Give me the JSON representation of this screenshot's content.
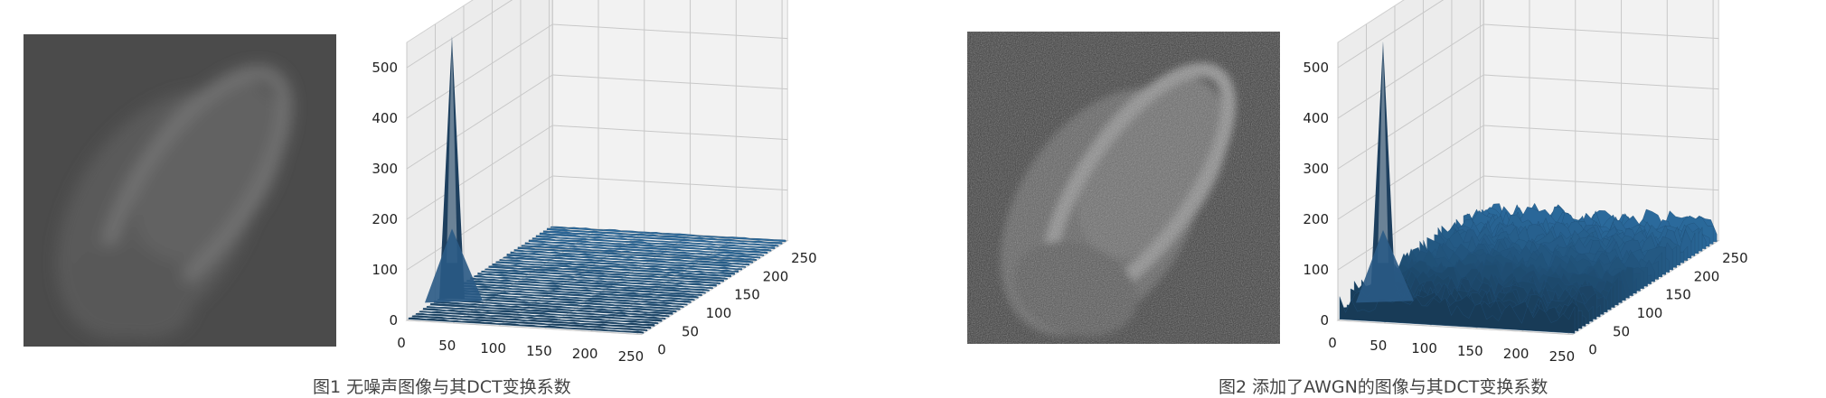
{
  "figures": [
    {
      "caption": "图1 无噪声图像与其DCT变换系数",
      "image_kind": "noise-free",
      "chart_data": {
        "type": "surface3d",
        "title": "",
        "xlabel": "",
        "ylabel": "",
        "zlabel": "",
        "x_range": [
          0,
          256
        ],
        "y_range": [
          0,
          256
        ],
        "z_range": [
          0,
          550
        ],
        "x_ticks": [
          0,
          50,
          100,
          150,
          200,
          250
        ],
        "y_ticks": [
          0,
          50,
          100,
          150,
          200,
          250
        ],
        "z_ticks": [
          0,
          100,
          200,
          300,
          400,
          500
        ],
        "peak_value": 520,
        "peak_location": [
          0,
          0
        ],
        "background_level": 3,
        "background_noise": 1,
        "grid": true,
        "surface_color": "#2b6b9e"
      }
    },
    {
      "caption": "图2 添加了AWGN的图像与其DCT变换系数",
      "image_kind": "noisy",
      "chart_data": {
        "type": "surface3d",
        "title": "",
        "xlabel": "",
        "ylabel": "",
        "zlabel": "",
        "x_range": [
          0,
          256
        ],
        "y_range": [
          0,
          256
        ],
        "z_range": [
          0,
          550
        ],
        "x_ticks": [
          0,
          50,
          100,
          150,
          200,
          250
        ],
        "y_ticks": [
          0,
          50,
          100,
          150,
          200,
          250
        ],
        "z_ticks": [
          0,
          100,
          200,
          300,
          400,
          500
        ],
        "peak_value": 510,
        "peak_location": [
          0,
          0
        ],
        "background_level": 35,
        "background_noise": 22,
        "grid": true,
        "surface_color": "#2b6b9e"
      }
    }
  ]
}
